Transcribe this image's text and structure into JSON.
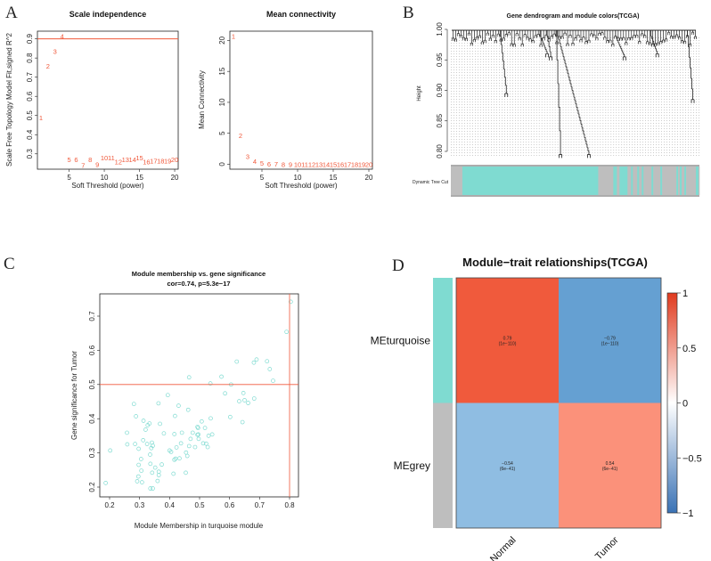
{
  "panels": {
    "a": "A",
    "b": "B",
    "c": "C",
    "d": "D"
  },
  "chart_data": [
    {
      "id": "scale_independence",
      "type": "scatter",
      "title": "Scale independence",
      "xlabel": "Soft Threshold (power)",
      "ylabel": "Scale Free Topology Model Fit,signed R^2",
      "xlim": [
        0.5,
        20.5
      ],
      "ylim": [
        0.22,
        0.94
      ],
      "xticks": [
        5,
        10,
        15,
        20
      ],
      "yticks": [
        0.3,
        0.4,
        0.5,
        0.6,
        0.7,
        0.8,
        0.9
      ],
      "hline": 0.9,
      "point_color": "#f0583a",
      "x": [
        1,
        2,
        3,
        4,
        5,
        6,
        7,
        8,
        9,
        10,
        11,
        12,
        13,
        14,
        15,
        16,
        17,
        18,
        19,
        20
      ],
      "y": [
        0.49,
        0.76,
        0.835,
        0.915,
        0.27,
        0.27,
        0.24,
        0.27,
        0.245,
        0.28,
        0.28,
        0.26,
        0.27,
        0.27,
        0.28,
        0.26,
        0.265,
        0.265,
        0.265,
        0.27
      ]
    },
    {
      "id": "mean_connectivity",
      "type": "scatter",
      "title": "Mean connectivity",
      "xlabel": "Soft Threshold (power)",
      "ylabel": "Mean Connectivity",
      "xlim": [
        0.5,
        20.5
      ],
      "ylim": [
        -0.8,
        21.5
      ],
      "xticks": [
        5,
        10,
        15,
        20
      ],
      "yticks": [
        0,
        5,
        10,
        15,
        20
      ],
      "point_color": "#f0583a",
      "x": [
        1,
        2,
        3,
        4,
        5,
        6,
        7,
        8,
        9,
        10,
        11,
        12,
        13,
        14,
        15,
        16,
        17,
        18,
        19,
        20
      ],
      "y": [
        20.7,
        4.7,
        1.3,
        0.5,
        0.2,
        0.05,
        0.03,
        0.02,
        0.01,
        0,
        0,
        0,
        0,
        0,
        0,
        0,
        0,
        0,
        0,
        0
      ]
    },
    {
      "id": "gene_dendrogram",
      "type": "dendrogram",
      "title": "Gene dendrogram and module colors(TCGA)",
      "ylabel": "Height",
      "ylim": [
        0.78,
        1.0
      ],
      "yticks": [
        "0.80",
        "0.85",
        "0.90",
        "0.95",
        "1.00"
      ],
      "color_row_label": "Dynamic Tree Cut",
      "n_leaves": 280,
      "module_colors": {
        "turquoise": "#7fdbd1",
        "grey": "#bebebe"
      },
      "module_segments": [
        [
          0,
          13,
          "grey"
        ],
        [
          13,
          166,
          "turquoise"
        ],
        [
          166,
          183,
          "grey"
        ],
        [
          183,
          187,
          "turquoise"
        ],
        [
          187,
          190,
          "grey"
        ],
        [
          190,
          199,
          "turquoise"
        ],
        [
          199,
          203,
          "grey"
        ],
        [
          203,
          205,
          "turquoise"
        ],
        [
          205,
          210,
          "grey"
        ],
        [
          210,
          212,
          "turquoise"
        ],
        [
          212,
          215,
          "grey"
        ],
        [
          215,
          217,
          "turquoise"
        ],
        [
          217,
          226,
          "grey"
        ],
        [
          226,
          228,
          "turquoise"
        ],
        [
          228,
          236,
          "grey"
        ],
        [
          236,
          238,
          "turquoise"
        ],
        [
          238,
          254,
          "grey"
        ],
        [
          254,
          256,
          "turquoise"
        ],
        [
          256,
          258,
          "grey"
        ],
        [
          258,
          260,
          "turquoise"
        ],
        [
          260,
          263,
          "grey"
        ],
        [
          263,
          265,
          "turquoise"
        ],
        [
          265,
          276,
          "grey"
        ],
        [
          276,
          279,
          "turquoise"
        ],
        [
          279,
          280,
          "grey"
        ]
      ]
    },
    {
      "id": "mm_vs_gs",
      "type": "scatter",
      "title": "Module membership vs. gene significance",
      "subtitle": "cor=0.74, p=5.3e−17",
      "xlabel": "Module Membership in turquoise module",
      "ylabel": "Gene significance for  Tumor",
      "xlim": [
        0.17,
        0.83
      ],
      "ylim": [
        0.17,
        0.76
      ],
      "xticks": [
        "0.2",
        "0.3",
        "0.4",
        "0.5",
        "0.6",
        "0.7",
        "0.8"
      ],
      "yticks": [
        "0.2",
        "0.3",
        "0.4",
        "0.5",
        "0.6",
        "0.7"
      ],
      "vline": 0.8,
      "hline": 0.5,
      "point_color": "#7fdbd1",
      "line_color": "#f0583a",
      "points": [
        [
          0.187,
          0.212
        ],
        [
          0.202,
          0.307
        ],
        [
          0.258,
          0.359
        ],
        [
          0.259,
          0.325
        ],
        [
          0.281,
          0.443
        ],
        [
          0.285,
          0.326
        ],
        [
          0.288,
          0.407
        ],
        [
          0.297,
          0.312
        ],
        [
          0.297,
          0.265
        ],
        [
          0.296,
          0.231
        ],
        [
          0.292,
          0.217
        ],
        [
          0.305,
          0.282
        ],
        [
          0.306,
          0.248
        ],
        [
          0.308,
          0.214
        ],
        [
          0.312,
          0.337
        ],
        [
          0.313,
          0.394
        ],
        [
          0.32,
          0.368
        ],
        [
          0.325,
          0.326
        ],
        [
          0.327,
          0.381
        ],
        [
          0.333,
          0.386
        ],
        [
          0.335,
          0.295
        ],
        [
          0.336,
          0.268
        ],
        [
          0.336,
          0.196
        ],
        [
          0.339,
          0.314
        ],
        [
          0.341,
          0.33
        ],
        [
          0.342,
          0.242
        ],
        [
          0.344,
          0.196
        ],
        [
          0.344,
          0.321
        ],
        [
          0.352,
          0.257
        ],
        [
          0.36,
          0.218
        ],
        [
          0.363,
          0.445
        ],
        [
          0.364,
          0.235
        ],
        [
          0.364,
          0.245
        ],
        [
          0.368,
          0.385
        ],
        [
          0.374,
          0.266
        ],
        [
          0.381,
          0.357
        ],
        [
          0.394,
          0.469
        ],
        [
          0.4,
          0.307
        ],
        [
          0.405,
          0.303
        ],
        [
          0.413,
          0.239
        ],
        [
          0.416,
          0.355
        ],
        [
          0.416,
          0.28
        ],
        [
          0.418,
          0.408
        ],
        [
          0.42,
          0.283
        ],
        [
          0.423,
          0.316
        ],
        [
          0.43,
          0.438
        ],
        [
          0.433,
          0.284
        ],
        [
          0.438,
          0.328
        ],
        [
          0.441,
          0.359
        ],
        [
          0.455,
          0.301
        ],
        [
          0.454,
          0.242
        ],
        [
          0.459,
          0.291
        ],
        [
          0.462,
          0.426
        ],
        [
          0.465,
          0.521
        ],
        [
          0.465,
          0.32
        ],
        [
          0.47,
          0.341
        ],
        [
          0.477,
          0.359
        ],
        [
          0.485,
          0.317
        ],
        [
          0.493,
          0.353
        ],
        [
          0.493,
          0.376
        ],
        [
          0.495,
          0.373
        ],
        [
          0.496,
          0.354
        ],
        [
          0.497,
          0.341
        ],
        [
          0.507,
          0.392
        ],
        [
          0.512,
          0.328
        ],
        [
          0.518,
          0.373
        ],
        [
          0.522,
          0.327
        ],
        [
          0.527,
          0.317
        ],
        [
          0.53,
          0.35
        ],
        [
          0.536,
          0.503
        ],
        [
          0.537,
          0.401
        ],
        [
          0.542,
          0.354
        ],
        [
          0.573,
          0.523
        ],
        [
          0.585,
          0.474
        ],
        [
          0.602,
          0.405
        ],
        [
          0.605,
          0.5
        ],
        [
          0.624,
          0.567
        ],
        [
          0.632,
          0.451
        ],
        [
          0.643,
          0.39
        ],
        [
          0.646,
          0.475
        ],
        [
          0.65,
          0.454
        ],
        [
          0.662,
          0.446
        ],
        [
          0.681,
          0.564
        ],
        [
          0.682,
          0.459
        ],
        [
          0.69,
          0.573
        ],
        [
          0.725,
          0.568
        ],
        [
          0.734,
          0.545
        ],
        [
          0.745,
          0.511
        ],
        [
          0.79,
          0.654
        ],
        [
          0.804,
          0.742
        ]
      ]
    },
    {
      "id": "module_trait",
      "type": "heatmap",
      "title": "Module−trait relationships(TCGA)",
      "rows": [
        "MEturquoise",
        "MEgrey"
      ],
      "row_colors": [
        "#7fdbd1",
        "#bebebe"
      ],
      "columns": [
        "Normal",
        "Tumor"
      ],
      "values": [
        [
          0.79,
          -0.79
        ],
        [
          -0.54,
          0.54
        ]
      ],
      "labels": [
        [
          "0.79",
          "−0.79"
        ],
        [
          "−0.54",
          "0.54"
        ]
      ],
      "pvalues": [
        [
          "(1e−110)",
          "(1e−110)"
        ],
        [
          "(6e−41)",
          "(6e−41)"
        ]
      ],
      "cell_colors": [
        [
          "#f05a3c",
          "#65a0d2"
        ],
        [
          "#8fbde2",
          "#fb917a"
        ]
      ],
      "colorbar": {
        "range": [
          -1,
          1
        ],
        "ticks": [
          "1",
          "0.5",
          "0",
          "−0.5",
          "−1"
        ],
        "low": "#3a72b5",
        "mid": "#ffffff",
        "high": "#e03a1e"
      }
    }
  ]
}
